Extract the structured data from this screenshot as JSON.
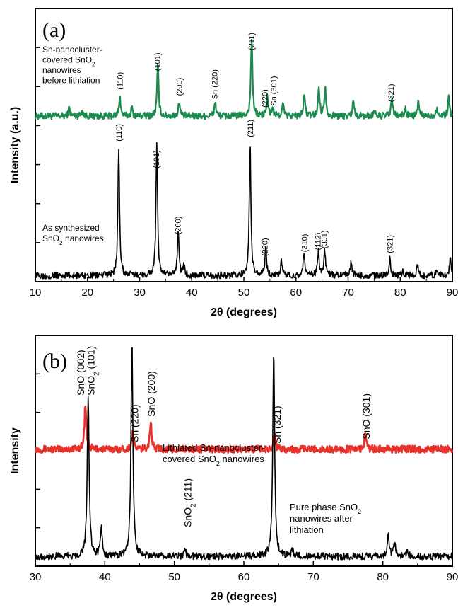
{
  "chart_data": [
    {
      "panel": "(a)",
      "type": "line",
      "xlabel": "2θ (degrees)",
      "ylabel": "Intensity (a.u.)",
      "xlim": [
        10,
        90
      ],
      "x_ticks": [
        10,
        20,
        30,
        40,
        50,
        60,
        70,
        80,
        90
      ],
      "grid": false,
      "series": [
        {
          "name_lines": [
            "Sn-nanocluster-",
            "covered SnO|2",
            "nanowires",
            "before lithiation"
          ],
          "color": "#1a8a4e",
          "offset": 4.0,
          "peaks": [
            [
              16.5,
              0.2
            ],
            [
              19,
              0.15
            ],
            [
              26.2,
              0.5
            ],
            [
              28.5,
              0.2
            ],
            [
              33.5,
              1.25
            ],
            [
              37.6,
              0.35
            ],
            [
              44.5,
              0.35
            ],
            [
              51.5,
              1.9
            ],
            [
              54.5,
              0.5
            ],
            [
              55.5,
              0.2
            ],
            [
              57.5,
              0.3
            ],
            [
              61.6,
              0.55
            ],
            [
              64.4,
              0.7
            ],
            [
              65.6,
              0.75
            ],
            [
              71,
              0.4
            ],
            [
              75,
              0.15
            ],
            [
              78.4,
              0.45
            ],
            [
              81,
              0.2
            ],
            [
              83.5,
              0.35
            ],
            [
              87,
              0.2
            ],
            [
              89.3,
              0.45
            ]
          ]
        },
        {
          "name_lines": [
            "As synthesized",
            "SnO|2 nanowires"
          ],
          "color": "#000000",
          "offset": 0.15,
          "peaks": [
            [
              26.0,
              3.1
            ],
            [
              33.3,
              3.2
            ],
            [
              37.4,
              1.1
            ],
            [
              38.5,
              0.25
            ],
            [
              51.2,
              3.2
            ],
            [
              54.2,
              0.7
            ],
            [
              57.2,
              0.35
            ],
            [
              61.5,
              0.55
            ],
            [
              64.3,
              0.6
            ],
            [
              65.5,
              0.65
            ],
            [
              70.6,
              0.35
            ],
            [
              78.0,
              0.4
            ],
            [
              80.5,
              0.15
            ],
            [
              83.3,
              0.25
            ],
            [
              87,
              0.15
            ],
            [
              89.6,
              0.4
            ]
          ]
        }
      ],
      "annotations": [
        {
          "text": "(110)",
          "x": 26.2,
          "series": 0
        },
        {
          "text": "(101)",
          "x": 33.4,
          "series": 0
        },
        {
          "text": "(200)",
          "x": 37.6,
          "series": 0
        },
        {
          "text": "Sn (220)",
          "x": 44.4,
          "series": 0
        },
        {
          "text": "(211)",
          "x": 51.4,
          "series": 0
        },
        {
          "text": "(220)",
          "x": 54.0,
          "series": 0
        },
        {
          "text": "Sn (301)",
          "x": 55.7,
          "series": 0
        },
        {
          "text": "(321)",
          "x": 78.2,
          "series": 0
        },
        {
          "text": "(110)",
          "x": 26.0,
          "series": 1
        },
        {
          "text": "(101)",
          "x": 33.2,
          "series": 1
        },
        {
          "text": "(200)",
          "x": 37.3,
          "series": 1
        },
        {
          "text": "(211)",
          "x": 51.2,
          "series": 1
        },
        {
          "text": "(220)",
          "x": 54.0,
          "series": 1
        },
        {
          "text": "(310)",
          "x": 61.6,
          "series": 1
        },
        {
          "text": "(112)",
          "x": 64.2,
          "series": 1
        },
        {
          "text": "(301)",
          "x": 65.4,
          "series": 1
        },
        {
          "text": "(321)",
          "x": 78.0,
          "series": 1
        }
      ]
    },
    {
      "panel": "(b)",
      "type": "line",
      "xlabel": "2θ (degrees)",
      "ylabel": "Intensity",
      "xlim": [
        30,
        90
      ],
      "x_ticks": [
        30,
        40,
        50,
        60,
        70,
        80,
        90
      ],
      "grid": false,
      "series": [
        {
          "name_lines": [
            "Lithiated Sn-nanocluster-",
            "covered SnO|2 nanowires"
          ],
          "color": "#e8312a",
          "offset": 3.6,
          "peaks": [
            [
              37.2,
              1.35
            ],
            [
              44.0,
              0.55
            ],
            [
              46.6,
              0.85
            ],
            [
              64.4,
              0.4
            ],
            [
              77.5,
              0.45
            ]
          ]
        },
        {
          "name_lines": [
            "Pure phase SnO|2",
            "nanowires after",
            "lithiation"
          ],
          "color": "#000000",
          "offset": 0.3,
          "peaks": [
            [
              37.6,
              5.0
            ],
            [
              39.5,
              0.9
            ],
            [
              43.9,
              6.6
            ],
            [
              51.5,
              0.25
            ],
            [
              64.3,
              6.3
            ],
            [
              67,
              0.2
            ],
            [
              80.8,
              0.7
            ],
            [
              81.7,
              0.4
            ],
            [
              83.5,
              0.2
            ]
          ]
        }
      ],
      "annotations": [
        {
          "text": "SnO (002)",
          "x": 36.6
        },
        {
          "text": "SnO|2 (101)",
          "x": 38.1
        },
        {
          "text": "Sn (220)",
          "x": 44.4
        },
        {
          "text": "SnO (200)",
          "x": 46.8
        },
        {
          "text": "SnO|2 (211)",
          "x": 52.0
        },
        {
          "text": "Sn (321)",
          "x": 64.9
        },
        {
          "text": "SnO (301)",
          "x": 77.7
        }
      ]
    }
  ]
}
